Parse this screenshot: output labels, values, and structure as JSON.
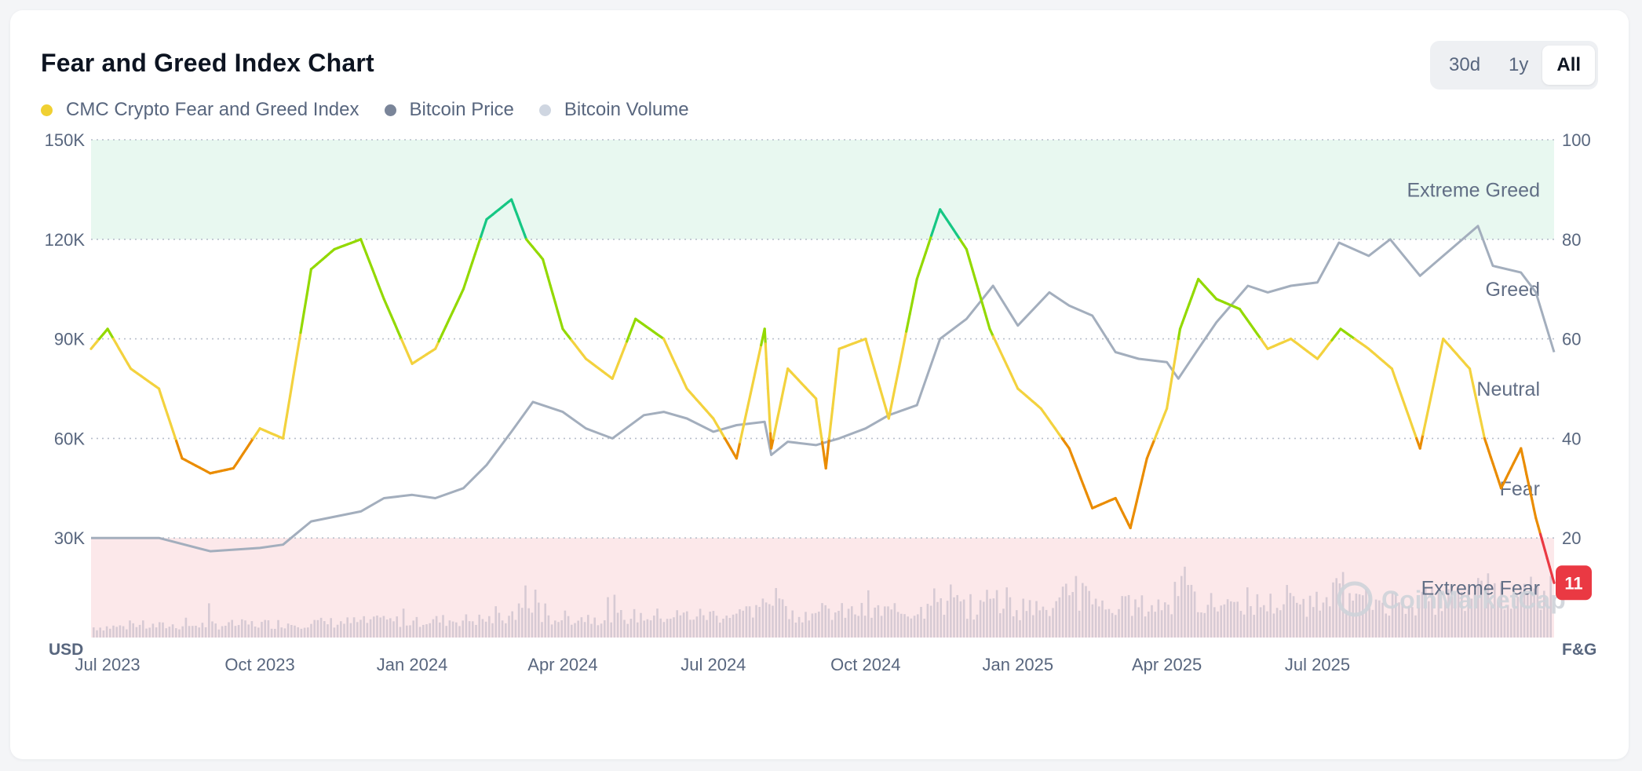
{
  "title": "Fear and Greed Index Chart",
  "range_buttons": [
    "30d",
    "1y",
    "All"
  ],
  "active_range": "All",
  "legend": [
    {
      "label": "CMC Crypto Fear and Greed Index",
      "color": "#f0d032"
    },
    {
      "label": "Bitcoin Price",
      "color": "#7a8599"
    },
    {
      "label": "Bitcoin Volume",
      "color": "#cfd6e1"
    }
  ],
  "watermark": "CoinMarketCap",
  "current_value": "11",
  "chart_data": {
    "type": "line",
    "title": "Fear and Greed Index Chart",
    "x_ticks": [
      "Jul 2023",
      "Oct 2023",
      "Jan 2024",
      "Apr 2024",
      "Jul 2024",
      "Oct 2024",
      "Jan 2025",
      "Apr 2025",
      "Jul 2025"
    ],
    "x_range": [
      "2023-06-21",
      "2025-11-21"
    ],
    "y_left": {
      "unit": "USD",
      "ticks": [
        "30K",
        "60K",
        "90K",
        "120K",
        "150K"
      ],
      "range": [
        0,
        150000
      ]
    },
    "y_right": {
      "unit": "F&G",
      "ticks": [
        "20",
        "40",
        "60",
        "80",
        "100"
      ],
      "range": [
        0,
        100
      ]
    },
    "grid": "horizontal dotted",
    "legend_position": "top-left",
    "zones": [
      {
        "label": "Extreme Greed",
        "from": 80,
        "to": 100,
        "color": "#e8f8f0"
      },
      {
        "label": "Greed",
        "from": 60,
        "to": 80
      },
      {
        "label": "Neutral",
        "from": 40,
        "to": 60
      },
      {
        "label": "Fear",
        "from": 20,
        "to": 40
      },
      {
        "label": "Extreme Fear",
        "from": 0,
        "to": 20,
        "color": "#fce8ea"
      }
    ],
    "level_colors": {
      "extreme_fear": "#ea3943",
      "fear": "#ea8c00",
      "neutral": "#f3d23e",
      "greed": "#93d900",
      "extreme_greed": "#16c784"
    },
    "series": [
      {
        "name": "CMC Crypto Fear and Greed Index",
        "axis": "right",
        "x": [
          "2023-06-21",
          "2023-07-01",
          "2023-07-15",
          "2023-08-01",
          "2023-08-15",
          "2023-09-01",
          "2023-09-15",
          "2023-10-01",
          "2023-10-15",
          "2023-11-01",
          "2023-11-15",
          "2023-12-01",
          "2023-12-15",
          "2024-01-01",
          "2024-01-15",
          "2024-02-01",
          "2024-02-15",
          "2024-03-01",
          "2024-03-10",
          "2024-03-20",
          "2024-04-01",
          "2024-04-15",
          "2024-05-01",
          "2024-05-15",
          "2024-06-01",
          "2024-06-15",
          "2024-07-01",
          "2024-07-15",
          "2024-08-01",
          "2024-08-05",
          "2024-08-15",
          "2024-09-01",
          "2024-09-07",
          "2024-09-15",
          "2024-10-01",
          "2024-10-15",
          "2024-11-01",
          "2024-11-15",
          "2024-12-01",
          "2024-12-15",
          "2025-01-01",
          "2025-01-15",
          "2025-02-01",
          "2025-02-15",
          "2025-03-01",
          "2025-03-10",
          "2025-03-20",
          "2025-04-01",
          "2025-04-09",
          "2025-04-20",
          "2025-05-01",
          "2025-05-15",
          "2025-06-01",
          "2025-06-15",
          "2025-07-01",
          "2025-07-15",
          "2025-08-01",
          "2025-08-15",
          "2025-09-01",
          "2025-09-15",
          "2025-10-01",
          "2025-10-10",
          "2025-10-20",
          "2025-11-01",
          "2025-11-10",
          "2025-11-21"
        ],
        "y": [
          58,
          62,
          54,
          50,
          36,
          33,
          34,
          42,
          40,
          74,
          78,
          80,
          68,
          55,
          58,
          70,
          84,
          88,
          80,
          76,
          62,
          56,
          52,
          64,
          60,
          50,
          44,
          36,
          62,
          38,
          54,
          48,
          34,
          58,
          60,
          44,
          72,
          86,
          78,
          62,
          50,
          46,
          38,
          26,
          28,
          22,
          36,
          46,
          62,
          72,
          68,
          66,
          58,
          60,
          56,
          62,
          58,
          54,
          38,
          60,
          54,
          40,
          30,
          38,
          24,
          11
        ]
      },
      {
        "name": "Bitcoin Price",
        "axis": "left",
        "x": [
          "2023-06-21",
          "2023-08-01",
          "2023-09-01",
          "2023-10-01",
          "2023-10-15",
          "2023-11-01",
          "2023-12-01",
          "2023-12-15",
          "2024-01-01",
          "2024-01-15",
          "2024-02-01",
          "2024-02-15",
          "2024-03-01",
          "2024-03-14",
          "2024-04-01",
          "2024-04-15",
          "2024-05-01",
          "2024-05-20",
          "2024-06-01",
          "2024-06-15",
          "2024-07-01",
          "2024-07-15",
          "2024-08-01",
          "2024-08-05",
          "2024-08-15",
          "2024-09-01",
          "2024-09-15",
          "2024-10-01",
          "2024-10-15",
          "2024-11-01",
          "2024-11-15",
          "2024-12-01",
          "2024-12-17",
          "2025-01-01",
          "2025-01-20",
          "2025-02-01",
          "2025-02-15",
          "2025-03-01",
          "2025-03-15",
          "2025-04-01",
          "2025-04-08",
          "2025-04-20",
          "2025-05-01",
          "2025-05-20",
          "2025-06-01",
          "2025-06-15",
          "2025-07-01",
          "2025-07-14",
          "2025-08-01",
          "2025-08-14",
          "2025-09-01",
          "2025-09-15",
          "2025-10-06",
          "2025-10-15",
          "2025-11-01",
          "2025-11-10",
          "2025-11-21"
        ],
        "y": [
          30000,
          30000,
          26000,
          27000,
          28000,
          35000,
          38000,
          42000,
          43000,
          42000,
          45000,
          52000,
          62000,
          71000,
          68000,
          63000,
          60000,
          67000,
          68000,
          66000,
          62000,
          64000,
          65000,
          55000,
          59000,
          58000,
          60000,
          63000,
          67000,
          70000,
          90000,
          96000,
          106000,
          94000,
          104000,
          100000,
          97000,
          86000,
          84000,
          83000,
          78000,
          87000,
          95000,
          106000,
          104000,
          106000,
          107000,
          119000,
          115000,
          120000,
          109000,
          115000,
          124000,
          112000,
          110000,
          104000,
          86000
        ]
      }
    ],
    "bitcoin_volume": "bars in the lower band, Jul 2023 – Nov 2025, peaks around Mar 2024, Nov 2024, Feb–Apr 2025"
  }
}
